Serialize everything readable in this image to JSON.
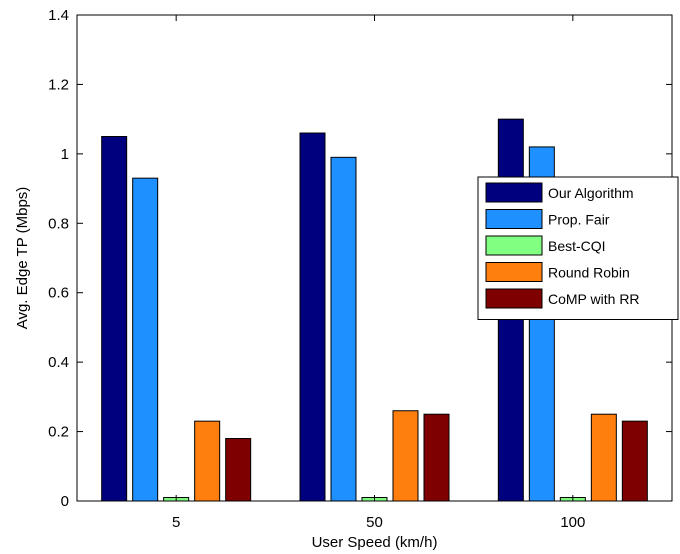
{
  "chart_data": {
    "type": "bar",
    "xlabel": "User Speed (km/h)",
    "ylabel": "Avg. Edge TP (Mbps)",
    "ylim": [
      0,
      1.4
    ],
    "yticks": [
      "0",
      "0.2",
      "0.4",
      "0.6",
      "0.8",
      "1",
      "1.2",
      "1.4"
    ],
    "categories": [
      "5",
      "50",
      "100"
    ],
    "legend_position": "right",
    "grid": false,
    "series": [
      {
        "name": "Our Algorithm",
        "color": "#00007f",
        "values": [
          1.05,
          1.06,
          1.1
        ]
      },
      {
        "name": "Prop. Fair",
        "color": "#1e90ff",
        "values": [
          0.93,
          0.99,
          1.02
        ]
      },
      {
        "name": "Best-CQI",
        "color": "#80ff80",
        "values": [
          0.01,
          0.01,
          0.01
        ]
      },
      {
        "name": "Round Robin",
        "color": "#ff7f0e",
        "values": [
          0.23,
          0.26,
          0.25
        ]
      },
      {
        "name": "CoMP with RR",
        "color": "#7f0000",
        "values": [
          0.18,
          0.25,
          0.23
        ]
      }
    ]
  }
}
